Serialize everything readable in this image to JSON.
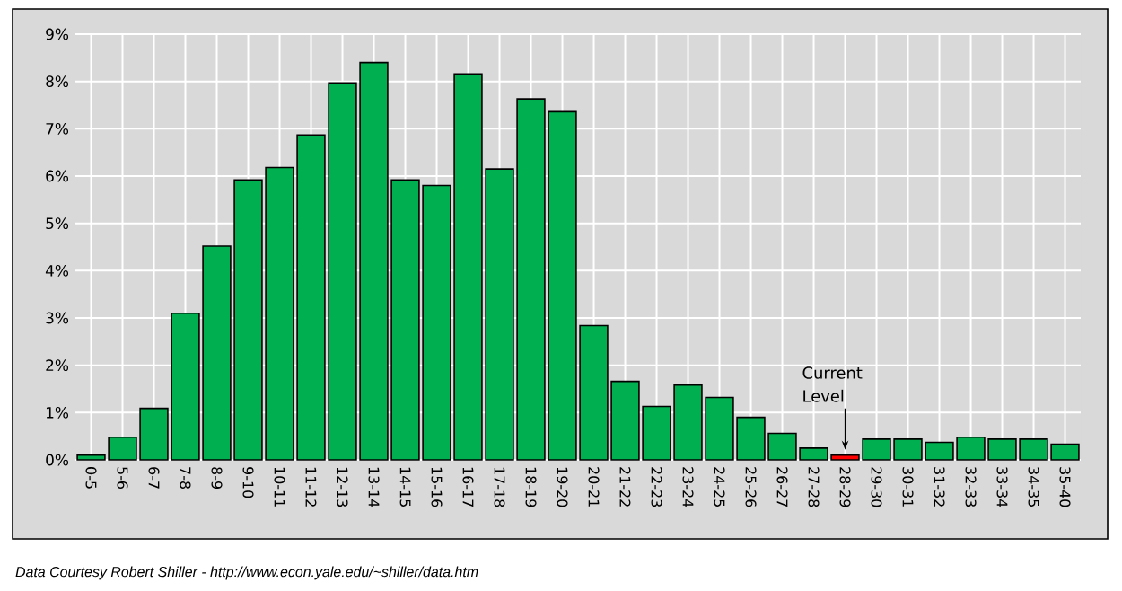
{
  "chart_data": {
    "type": "bar",
    "categories": [
      "0-5",
      "5-6",
      "6-7",
      "7-8",
      "8-9",
      "9-10",
      "10-11",
      "11-12",
      "12-13",
      "13-14",
      "14-15",
      "15-16",
      "16-17",
      "17-18",
      "18-19",
      "19-20",
      "20-21",
      "21-22",
      "22-23",
      "23-24",
      "24-25",
      "25-26",
      "26-27",
      "27-28",
      "28-29",
      "29-30",
      "30-31",
      "31-32",
      "32-33",
      "33-34",
      "34-35",
      "35-40"
    ],
    "values": [
      0.1,
      0.48,
      1.09,
      3.1,
      4.52,
      5.92,
      6.18,
      6.87,
      7.97,
      8.4,
      5.92,
      5.8,
      8.16,
      6.15,
      7.63,
      7.36,
      2.84,
      1.66,
      1.13,
      1.58,
      1.32,
      0.9,
      0.56,
      0.25,
      0.1,
      0.44,
      0.44,
      0.37,
      0.48,
      0.44,
      0.44,
      0.33
    ],
    "colors": [
      "#00b050",
      "#00b050",
      "#00b050",
      "#00b050",
      "#00b050",
      "#00b050",
      "#00b050",
      "#00b050",
      "#00b050",
      "#00b050",
      "#00b050",
      "#00b050",
      "#00b050",
      "#00b050",
      "#00b050",
      "#00b050",
      "#00b050",
      "#00b050",
      "#00b050",
      "#00b050",
      "#00b050",
      "#00b050",
      "#00b050",
      "#00b050",
      "#ff0000",
      "#00b050",
      "#00b050",
      "#00b050",
      "#00b050",
      "#00b050",
      "#00b050",
      "#00b050"
    ],
    "ylim": [
      0,
      9
    ],
    "yticks": [
      {
        "value": 0,
        "label": "0%"
      },
      {
        "value": 1,
        "label": "1%"
      },
      {
        "value": 2,
        "label": "2%"
      },
      {
        "value": 3,
        "label": "3%"
      },
      {
        "value": 4,
        "label": "4%"
      },
      {
        "value": 5,
        "label": "5%"
      },
      {
        "value": 6,
        "label": "6%"
      },
      {
        "value": 7,
        "label": "7%"
      },
      {
        "value": 8,
        "label": "8%"
      },
      {
        "value": 9,
        "label": "9%"
      }
    ],
    "grid": true,
    "annotations": [
      {
        "text": "Current Level",
        "x": "28-29",
        "y": 0.1
      },
      "Data Courtesy Robert Shiller - http://www.econ.yale.edu/~shiller/data.htm"
    ]
  }
}
